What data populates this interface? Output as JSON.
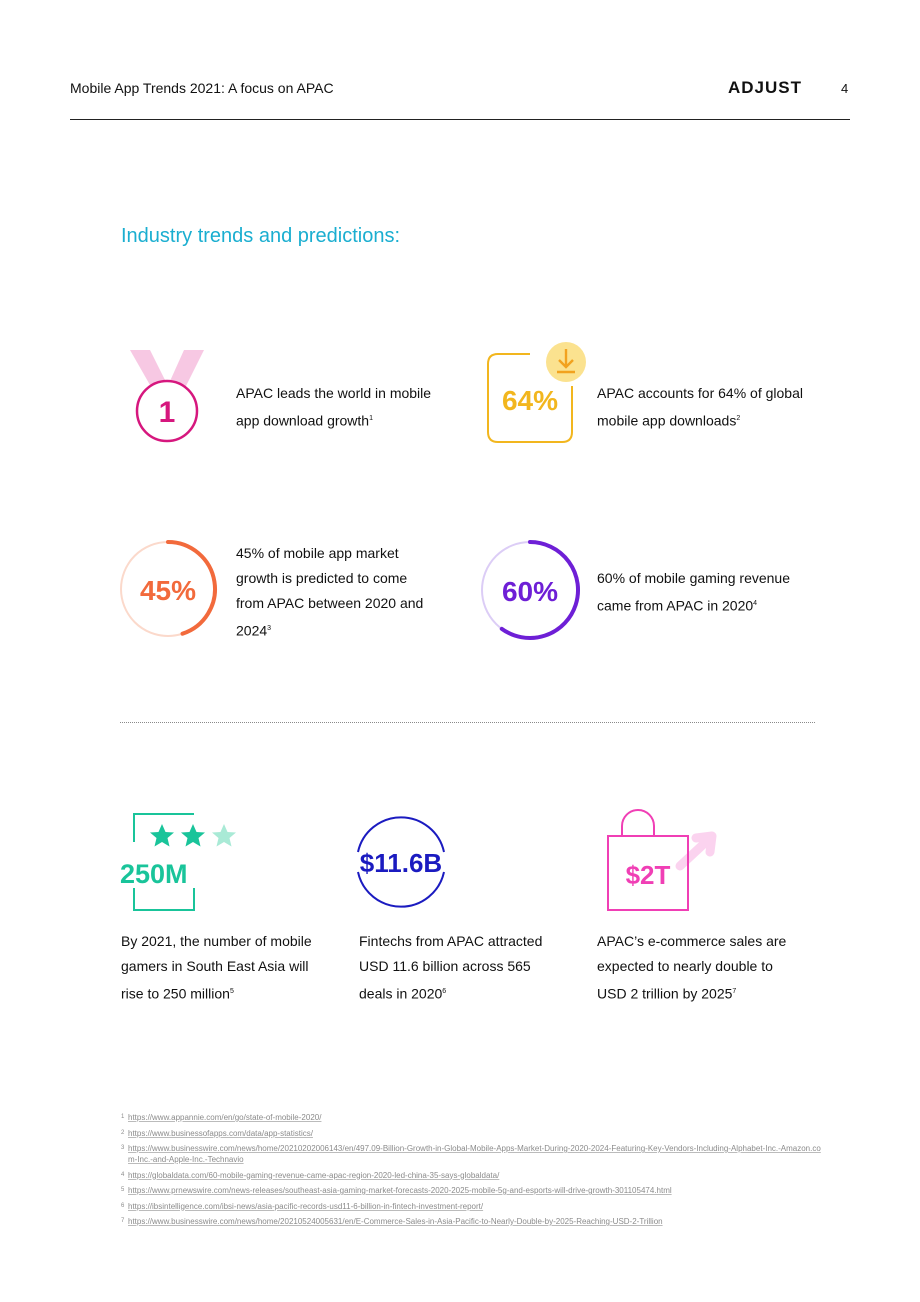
{
  "header": {
    "title": "Mobile App Trends 2021: A focus on APAC",
    "logo": "ADJUST",
    "page_number": "4"
  },
  "section_title": "Industry trends and predictions:",
  "stats": {
    "rank": {
      "value": "1",
      "text": "APAC leads the world in mobile app download growth",
      "ref": "1",
      "color": "#d6177e"
    },
    "downloads": {
      "value": "64%",
      "text": "APAC accounts for 64% of global mobile app downloads",
      "ref": "2",
      "color": "#f2b61e"
    },
    "market": {
      "value": "45%",
      "text": "45% of mobile app market growth is predicted to come from APAC between 2020 and 2024",
      "ref": "3",
      "color": "#f26a3c",
      "fill_fraction": 0.45
    },
    "gaming": {
      "value": "60%",
      "text": "60% of mobile gaming revenue came from APAC in 2020",
      "ref": "4",
      "color": "#6e1fd6",
      "fill_fraction": 0.6
    }
  },
  "bottom_stats": {
    "gamers": {
      "value": "250M",
      "text": "By 2021, the number of mobile gamers in South East Asia will rise to 250 million",
      "ref": "5",
      "color": "#19c49a",
      "stars": 3
    },
    "fintech": {
      "value": "$11.6B",
      "text": "Fintechs from APAC attracted USD 11.6 billion across 565 deals in 2020",
      "ref": "6",
      "color": "#1b1bc0"
    },
    "ecommerce": {
      "value": "$2T",
      "text": "APAC’s e-commerce sales are expected to nearly double to USD 2 trillion by 2025",
      "ref": "7",
      "color": "#f03fb5"
    }
  },
  "footnotes": [
    {
      "n": "1",
      "url": "https://www.appannie.com/en/go/state-of-mobile-2020/"
    },
    {
      "n": "2",
      "url": "https://www.businessofapps.com/data/app-statistics/"
    },
    {
      "n": "3",
      "url": "https://www.businesswire.com/news/home/20210202006143/en/497.09-Billion-Growth-in-Global-Mobile-Apps-Market-During-2020-2024-Featuring-Key-Vendors-Including-Alphabet-Inc.-Amazon.com-Inc.-and-Apple-Inc.-Technavio"
    },
    {
      "n": "4",
      "url": "https://globaldata.com/60-mobile-gaming-revenue-came-apac-region-2020-led-china-35-says-globaldata/"
    },
    {
      "n": "5",
      "url": "https://www.prnewswire.com/news-releases/southeast-asia-gaming-market-forecasts-2020-2025-mobile-5g-and-esports-will-drive-growth-301105474.html"
    },
    {
      "n": "6",
      "url": "https://ibsintelligence.com/ibsi-news/asia-pacific-records-usd11-6-billion-in-fintech-investment-report/"
    },
    {
      "n": "7",
      "url": "https://www.businesswire.com/news/home/20210524005631/en/E-Commerce-Sales-in-Asia-Pacific-to-Nearly-Double-by-2025-Reaching-USD-2-Trillion"
    }
  ]
}
